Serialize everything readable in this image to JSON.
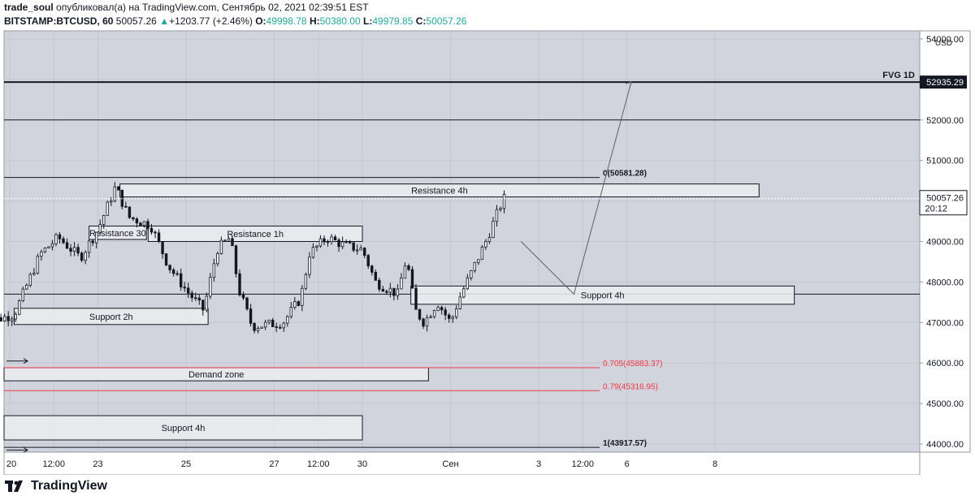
{
  "header": {
    "publisher_line": "trade_soul опубликовал(а) на TradingView.com, Сентябрь 02, 2021 02:39:51 EST",
    "publisher_name": "trade_soul",
    "publisher_rest": " опубликовал(а) на TradingView.com, Сентябрь 02, 2021 02:39:51 EST",
    "symbol": "BITSTAMP:BTCUSD, 60",
    "last": "50057.26",
    "change": "+1203.77 (+2.46%)",
    "o_label": "O:",
    "o": "49998.78",
    "h_label": "H:",
    "h": "50380.00",
    "l_label": "L:",
    "l": "49979.85",
    "c_label": "C:",
    "c": "50057.26"
  },
  "footer": {
    "brand": "TradingView"
  },
  "colors": {
    "plot_bg": "#d1d4dc",
    "up": "#26a69a",
    "fib_red": "#f23645",
    "box_fill": "#ececef"
  },
  "chart_data": {
    "type": "candlestick",
    "currency": "USD",
    "ylim": [
      43800,
      54200
    ],
    "y_ticks": [
      44000,
      45000,
      46000,
      47000,
      48000,
      49000,
      50000,
      51000,
      52000,
      53000,
      54000
    ],
    "y_tick_labels": [
      "44000.00",
      "45000.00",
      "46000.00",
      "47000.00",
      "48000.00",
      "49000.00",
      "50000.00",
      "51000.00",
      "52000.00",
      "",
      "54000.00"
    ],
    "x_ticks": [
      {
        "label": "20",
        "pos": 0.0
      },
      {
        "label": "12:00",
        "pos": 0.5
      },
      {
        "label": "23",
        "pos": 1.0
      },
      {
        "label": "25",
        "pos": 2.0
      },
      {
        "label": "27",
        "pos": 3.0
      },
      {
        "label": "12:00",
        "pos": 3.5
      },
      {
        "label": "30",
        "pos": 4.0
      },
      {
        "label": "Сен",
        "pos": 5.0
      },
      {
        "label": "3",
        "pos": 6.0
      },
      {
        "label": "12:00",
        "pos": 6.5
      },
      {
        "label": "6",
        "pos": 7.0
      },
      {
        "label": "8",
        "pos": 8.0
      }
    ],
    "last_price": {
      "value": 50057.26,
      "label": "50057.26",
      "countdown": "20:12"
    },
    "fvg": {
      "value": 52935.29,
      "label": "FVG 1D",
      "price_label": "52935.29"
    },
    "h_lines": [
      52000,
      47700
    ],
    "fib_levels": [
      {
        "label": "0(50581.28)",
        "value": 50581.28,
        "color": "#131722"
      },
      {
        "label": "0.705(45883.37)",
        "value": 45883.37,
        "color": "#f23645"
      },
      {
        "label": "0.79(45316.95)",
        "value": 45316.95,
        "color": "#f23645"
      },
      {
        "label": "1(43917.57)",
        "value": 43917.57,
        "color": "#131722"
      }
    ],
    "zones": [
      {
        "label": "Resistance 4h",
        "top": 50420,
        "bottom": 50100,
        "x0": 1.25,
        "x1": 8.5
      },
      {
        "label": "Resistance 30",
        "top": 49380,
        "bottom": 49050,
        "x0": 0.9,
        "x1": 1.55
      },
      {
        "label": "Resistance 1h",
        "top": 49380,
        "bottom": 49000,
        "x0": 1.57,
        "x1": 4.0
      },
      {
        "label": "Support 4h",
        "top": 47900,
        "bottom": 47450,
        "x0": 4.55,
        "x1": 8.9
      },
      {
        "label": "Support 2h",
        "top": 47350,
        "bottom": 46950,
        "x0": 0.05,
        "x1": 2.25
      },
      {
        "label": "Demand zone",
        "top": 45883,
        "bottom": 45560,
        "x0": -0.35,
        "x1": 4.75
      },
      {
        "label": "Support 4h",
        "top": 44700,
        "bottom": 44100,
        "x0": -0.35,
        "x1": 4.0
      }
    ],
    "anchors": {
      "x_start": -0.35,
      "x_end": 4.85
    },
    "waypoints": [
      {
        "t": -0.35,
        "p": 46950
      },
      {
        "t": 0.05,
        "p": 47200
      },
      {
        "t": 0.35,
        "p": 48700
      },
      {
        "t": 0.55,
        "p": 49100
      },
      {
        "t": 0.8,
        "p": 48600
      },
      {
        "t": 1.0,
        "p": 49300
      },
      {
        "t": 1.2,
        "p": 50350
      },
      {
        "t": 1.35,
        "p": 49600
      },
      {
        "t": 1.6,
        "p": 49400
      },
      {
        "t": 1.8,
        "p": 48400
      },
      {
        "t": 2.0,
        "p": 47800
      },
      {
        "t": 2.2,
        "p": 47300
      },
      {
        "t": 2.35,
        "p": 48800
      },
      {
        "t": 2.5,
        "p": 49100
      },
      {
        "t": 2.6,
        "p": 47800
      },
      {
        "t": 2.75,
        "p": 46900
      },
      {
        "t": 3.1,
        "p": 47000
      },
      {
        "t": 3.3,
        "p": 47600
      },
      {
        "t": 3.4,
        "p": 48700
      },
      {
        "t": 3.6,
        "p": 49100
      },
      {
        "t": 3.8,
        "p": 48900
      },
      {
        "t": 4.0,
        "p": 48800
      },
      {
        "t": 4.15,
        "p": 48000
      },
      {
        "t": 4.4,
        "p": 47700
      },
      {
        "t": 4.5,
        "p": 48600
      },
      {
        "t": 4.6,
        "p": 47300
      },
      {
        "t": 4.7,
        "p": 47000
      },
      {
        "t": 4.85,
        "p": 47500
      },
      {
        "t": 5.0,
        "p": 47000
      },
      {
        "t": 5.1,
        "p": 47600
      },
      {
        "t": 5.25,
        "p": 48300
      },
      {
        "t": 5.4,
        "p": 49000
      },
      {
        "t": 5.55,
        "p": 49800
      },
      {
        "t": 5.6,
        "p": 50060
      }
    ]
  }
}
